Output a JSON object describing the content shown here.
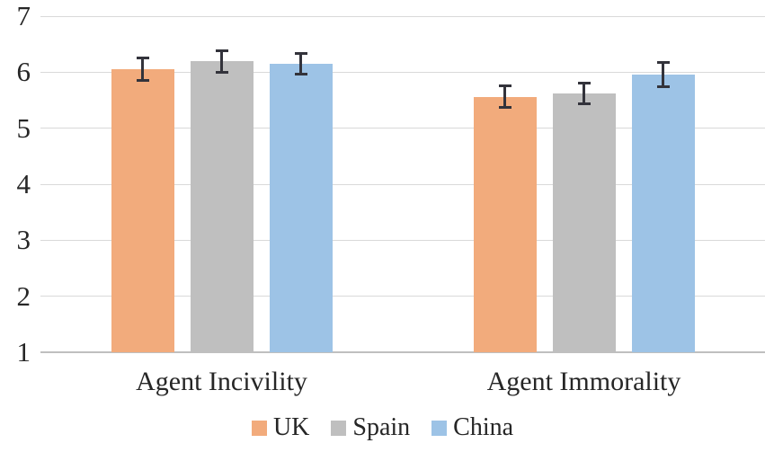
{
  "chart_data": {
    "type": "bar",
    "categories": [
      "Agent Incivility",
      "Agent Immorality"
    ],
    "series": [
      {
        "name": "UK",
        "color": "#F2AB7C",
        "values": [
          6.05,
          5.56
        ],
        "errors": [
          0.21,
          0.2
        ]
      },
      {
        "name": "Spain",
        "color": "#BFBFBF",
        "values": [
          6.19,
          5.62
        ],
        "errors": [
          0.2,
          0.2
        ]
      },
      {
        "name": "China",
        "color": "#9DC3E6",
        "values": [
          6.15,
          5.96
        ],
        "errors": [
          0.2,
          0.22
        ]
      }
    ],
    "ylim": [
      1,
      7
    ],
    "yticks": [
      1,
      2,
      3,
      4,
      5,
      6,
      7
    ],
    "grid": true,
    "legend_position": "bottom",
    "legend_labels": [
      "UK",
      "Spain",
      "China"
    ],
    "colors": {
      "gridline": "#D9D9D9",
      "baseline": "#BFBFBF",
      "error_bar": "#33333B",
      "text": "#262626",
      "background": "#FFFFFF"
    }
  }
}
